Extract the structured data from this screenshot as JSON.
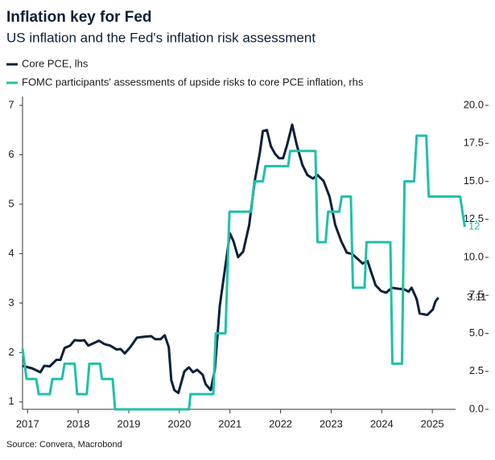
{
  "chart_data": {
    "type": "line",
    "title": "Inflation key for Fed",
    "subtitle": "US inflation and the Fed's inflation risk assessment",
    "source": "Source: Convera, Macrobond",
    "xlim": [
      2016.9,
      2025.65
    ],
    "xticks": [
      2017,
      2018,
      2019,
      2020,
      2021,
      2022,
      2023,
      2024,
      2025
    ],
    "ylim": [
      0.85,
      7
    ],
    "yticks": [
      1,
      2,
      3,
      4,
      5,
      6,
      7
    ],
    "y2lim": [
      0,
      20
    ],
    "y2ticks": [
      {
        "value": 0,
        "label": "0.0"
      },
      2.5,
      {
        "value": 5,
        "label": "5.0"
      },
      7.5,
      {
        "value": 10,
        "label": "10.0"
      },
      12.5,
      {
        "value": 15,
        "label": "15.0"
      },
      17.5,
      {
        "value": 20,
        "label": "20.0"
      }
    ],
    "series": [
      {
        "name": "Core PCE, lhs",
        "color": "#0b2038",
        "axis": "y",
        "x": [
          2016.9,
          2017.09,
          2017.25,
          2017.33,
          2017.44,
          2017.57,
          2017.65,
          2017.73,
          2017.84,
          2017.93,
          2018.04,
          2018.12,
          2018.2,
          2018.31,
          2018.41,
          2018.52,
          2018.63,
          2018.76,
          2018.84,
          2018.92,
          2019.03,
          2019.16,
          2019.32,
          2019.44,
          2019.52,
          2019.63,
          2019.71,
          2019.79,
          2019.84,
          2019.9,
          2019.98,
          2020.1,
          2020.19,
          2020.27,
          2020.35,
          2020.46,
          2020.52,
          2020.62,
          2020.7,
          2020.8,
          2020.91,
          2021.0,
          2021.07,
          2021.16,
          2021.26,
          2021.38,
          2021.49,
          2021.59,
          2021.65,
          2021.73,
          2021.81,
          2021.89,
          2021.97,
          2022.05,
          2022.13,
          2022.23,
          2022.32,
          2022.43,
          2022.53,
          2022.64,
          2022.73,
          2022.85,
          2022.97,
          2023.08,
          2023.2,
          2023.31,
          2023.42,
          2023.53,
          2023.62,
          2023.72,
          2023.8,
          2023.88,
          2023.99,
          2024.09,
          2024.2,
          2024.32,
          2024.44,
          2024.53,
          2024.59,
          2024.69,
          2024.75,
          2024.9,
          2025.01,
          2025.06,
          2025.12
        ],
        "values": [
          1.73,
          1.68,
          1.6,
          1.73,
          1.72,
          1.85,
          1.85,
          2.09,
          2.14,
          2.25,
          2.24,
          2.25,
          2.14,
          2.19,
          2.24,
          2.17,
          2.14,
          2.06,
          2.07,
          1.98,
          2.11,
          2.3,
          2.32,
          2.33,
          2.27,
          2.27,
          2.35,
          2.11,
          1.44,
          1.24,
          1.18,
          1.62,
          1.7,
          1.6,
          1.65,
          1.55,
          1.36,
          1.24,
          1.65,
          2.95,
          3.76,
          4.41,
          4.25,
          3.93,
          4.04,
          4.58,
          5.47,
          6.04,
          6.48,
          6.5,
          6.17,
          6.02,
          5.93,
          5.93,
          6.2,
          6.61,
          6.2,
          5.8,
          5.59,
          5.52,
          5.59,
          5.47,
          5.15,
          4.58,
          4.25,
          4.02,
          3.99,
          3.89,
          3.8,
          3.85,
          3.6,
          3.36,
          3.24,
          3.21,
          3.31,
          3.29,
          3.28,
          3.23,
          3.31,
          3.08,
          2.79,
          2.76,
          2.87,
          3.03,
          3.11
        ]
      },
      {
        "name": "FOMC participants' assessments of upside risks to core PCE inflation, rhs",
        "color": "#1fc0ab",
        "axis": "y2",
        "x": [
          2016.9,
          2016.98,
          2017.17,
          2017.22,
          2017.44,
          2017.49,
          2017.68,
          2017.73,
          2017.93,
          2017.98,
          2018.17,
          2018.22,
          2018.43,
          2018.47,
          2018.68,
          2018.73,
          2020.19,
          2020.22,
          2020.67,
          2020.72,
          2020.91,
          2020.99,
          2021.42,
          2021.48,
          2021.65,
          2021.7,
          2022.15,
          2022.19,
          2022.69,
          2022.73,
          2022.89,
          2022.94,
          2023.16,
          2023.21,
          2023.39,
          2023.43,
          2023.66,
          2023.7,
          2024.17,
          2024.21,
          2024.4,
          2024.45,
          2024.64,
          2024.69,
          2024.88,
          2024.93,
          2025.55,
          2025.64
        ],
        "values": [
          4,
          2,
          2,
          1,
          1,
          2,
          2,
          3,
          3,
          1,
          1,
          3,
          3,
          2,
          2,
          0,
          0,
          1,
          1,
          5,
          5,
          13,
          13,
          15,
          15,
          16,
          16,
          17,
          17,
          11,
          11,
          13,
          13,
          14,
          14,
          8,
          8,
          11,
          11,
          3,
          3,
          15,
          15,
          18,
          18,
          14,
          14,
          12
        ]
      }
    ]
  }
}
